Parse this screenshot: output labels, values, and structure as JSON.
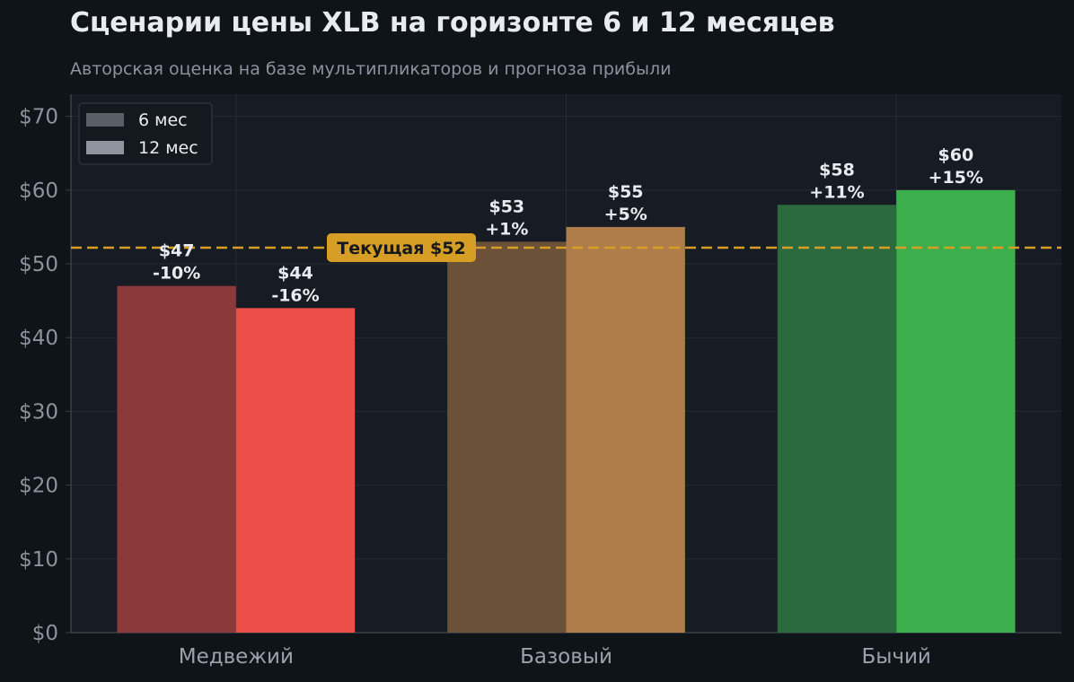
{
  "title": "Сценарии цены XLB на горизонте 6 и 12 месяцев",
  "subtitle": "Авторская оценка на базе мультипликаторов и прогноза прибыли",
  "chart_data": {
    "type": "bar",
    "categories": [
      "Медвежий",
      "Базовый",
      "Бычий"
    ],
    "series": [
      {
        "name": "6 мес",
        "values": [
          47,
          53,
          58
        ],
        "labels": [
          "$47\n-10%",
          "$53\n+1%",
          "$58\n+11%"
        ],
        "colors": [
          "#8b3a3c",
          "#6a5138",
          "#2b6a3d"
        ]
      },
      {
        "name": "12 мес",
        "values": [
          44,
          55,
          60
        ],
        "labels": [
          "$44\n-16%",
          "$55\n+5%",
          "$60\n+15%"
        ],
        "colors": [
          "#eb4f48",
          "#ae7d4a",
          "#3cae4c"
        ]
      }
    ],
    "ylim": [
      0,
      73
    ],
    "yticks": [
      0,
      10,
      20,
      30,
      40,
      50,
      60,
      70
    ],
    "ytick_labels": [
      "$0",
      "$10",
      "$20",
      "$30",
      "$40",
      "$50",
      "$60",
      "$70"
    ],
    "grid": true,
    "legend_position": "top-left",
    "legend_colors": [
      "#5a5e67",
      "#8e959f"
    ],
    "reference_line": {
      "value": 52.2,
      "label": "Текущая $52",
      "color": "#d69e24"
    }
  }
}
